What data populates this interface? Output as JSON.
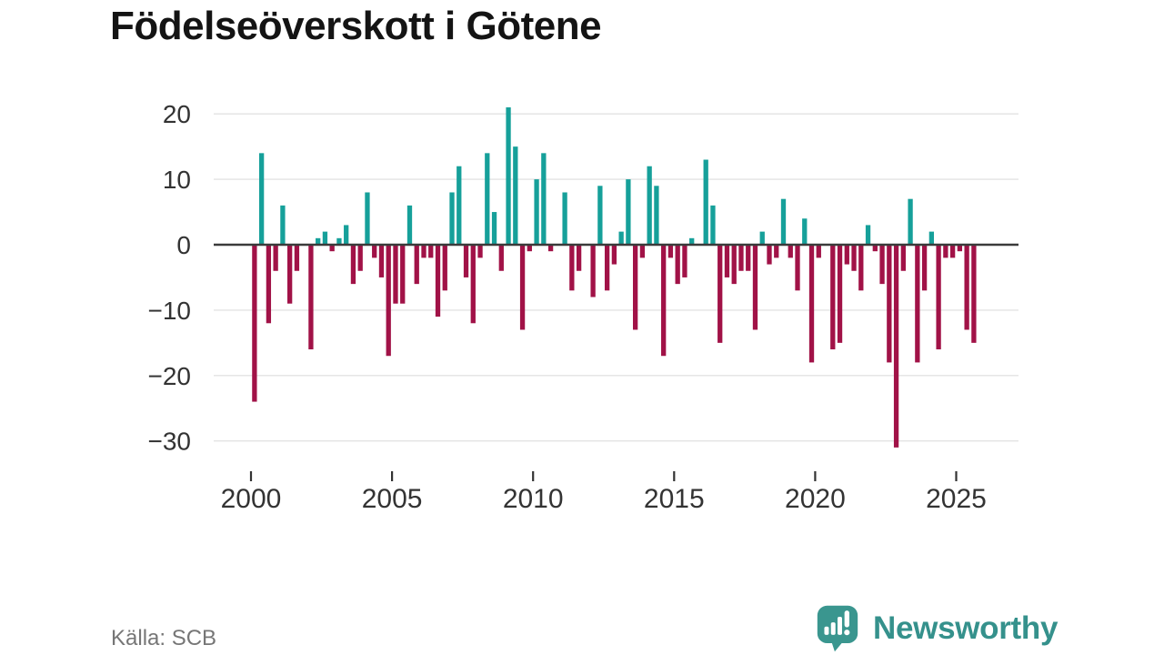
{
  "title": "Födelseöverskott i Götene",
  "source": "Källa: SCB",
  "branding": {
    "logo_text": "Newsworthy",
    "logo_icon": "newsworthy-speech-bubble-bar-chart-icon"
  },
  "colors": {
    "positive": "#16a09a",
    "negative": "#a11247",
    "grid": "#e3e3e3",
    "zero_axis": "#3b3b3b",
    "title_text": "#141414",
    "axis_text": "#333333",
    "source_text": "#767676",
    "brand_teal": "#35918c"
  },
  "chart_data": {
    "type": "bar",
    "title": "Födelseöverskott i Götene",
    "frequency": "quarterly",
    "start_period": "2000-Q1",
    "end_period": "2025-Q3",
    "values": [
      -24,
      14,
      -12,
      -4,
      6,
      -9,
      -4,
      0,
      -16,
      1,
      2,
      -1,
      1,
      3,
      -6,
      -4,
      8,
      -2,
      -5,
      -17,
      -9,
      -9,
      6,
      -6,
      -2,
      -2,
      -11,
      -7,
      8,
      12,
      -5,
      -12,
      -2,
      14,
      5,
      -4,
      21,
      15,
      -13,
      -1,
      10,
      14,
      -1,
      0,
      8,
      -7,
      -4,
      0,
      -8,
      9,
      -7,
      -3,
      2,
      10,
      -13,
      -2,
      12,
      9,
      -17,
      -2,
      -6,
      -5,
      1,
      0,
      13,
      6,
      -15,
      -5,
      -6,
      -4,
      -4,
      -13,
      2,
      -3,
      -2,
      7,
      -2,
      -7,
      4,
      -18,
      -2,
      0,
      -16,
      -15,
      -3,
      -4,
      -7,
      3,
      -1,
      -6,
      -18,
      -31,
      -4,
      7,
      -18,
      -7,
      2,
      -16,
      -2,
      -2,
      -1,
      -13,
      -15
    ],
    "x_tick_labels": [
      "2000",
      "2005",
      "2010",
      "2015",
      "2020",
      "2025"
    ],
    "y_ticks": [
      20,
      10,
      0,
      -10,
      -20,
      -30
    ],
    "ylim": [
      -33,
      23
    ],
    "xlabel": "",
    "ylabel": "",
    "grid": "horizontal",
    "legend": "none",
    "bar_color_rule": "positive teal, negative crimson, zero not drawn"
  }
}
